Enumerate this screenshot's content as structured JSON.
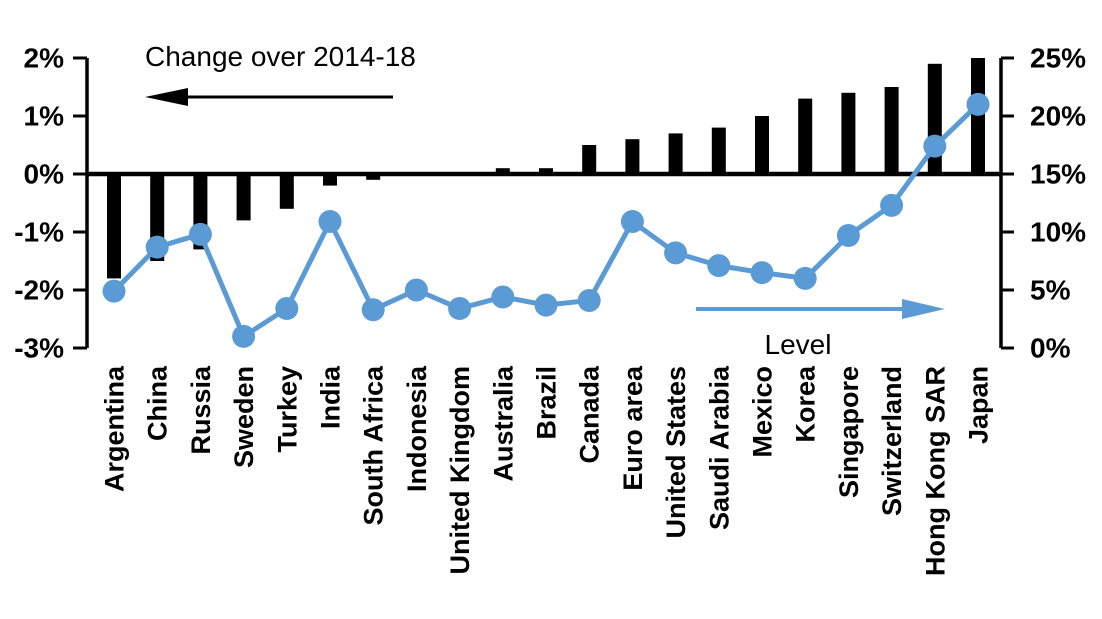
{
  "chart_data": {
    "type": "bar+line",
    "title": "",
    "categories": [
      "Argentina",
      "China",
      "Russia",
      "Sweden",
      "Turkey",
      "India",
      "South Africa",
      "Indonesia",
      "United Kingdom",
      "Australia",
      "Brazil",
      "Canada",
      "Euro area",
      "United States",
      "Saudi Arabia",
      "Mexico",
      "Korea",
      "Singapore",
      "Switzerland",
      "Hong Kong SAR",
      "Japan"
    ],
    "series": [
      {
        "name": "Change over 2014-18",
        "type": "bar",
        "axis": "left",
        "color": "#000000",
        "values": [
          -1.8,
          -1.5,
          -1.3,
          -0.8,
          -0.6,
          -0.2,
          -0.1,
          0,
          0,
          0.1,
          0.1,
          0.5,
          0.6,
          0.7,
          0.8,
          1.0,
          1.3,
          1.4,
          1.5,
          1.9,
          2.0
        ]
      },
      {
        "name": "Level",
        "type": "line",
        "axis": "right",
        "color": "#5b9bd5",
        "values": [
          4.9,
          8.7,
          9.8,
          1.0,
          3.4,
          10.9,
          3.3,
          5.0,
          3.4,
          4.4,
          3.7,
          4.1,
          10.9,
          8.2,
          7.1,
          6.5,
          6.0,
          9.7,
          12.3,
          17.4,
          21.0
        ]
      }
    ],
    "left_axis": {
      "unit": "%",
      "min": -3,
      "max": 2,
      "tick_step": 1,
      "tick_labels": [
        "2%",
        "1%",
        "0%",
        "-1%",
        "-2%",
        "-3%"
      ],
      "tick_values": [
        2,
        1,
        0,
        -1,
        -2,
        -3
      ]
    },
    "right_axis": {
      "unit": "%",
      "min": 0,
      "max": 25,
      "tick_step": 5,
      "tick_labels": [
        "25%",
        "20%",
        "15%",
        "10%",
        "5%",
        "0%"
      ],
      "tick_values": [
        25,
        20,
        15,
        10,
        5,
        0
      ]
    },
    "annotations": [
      {
        "id": "change-label",
        "text": "Change over 2014-18",
        "arrow": "left",
        "color": "#000000"
      },
      {
        "id": "level-label",
        "text": "Level",
        "arrow": "right",
        "color": "#5b9bd5"
      }
    ],
    "grid": false,
    "legend_position": "none"
  }
}
